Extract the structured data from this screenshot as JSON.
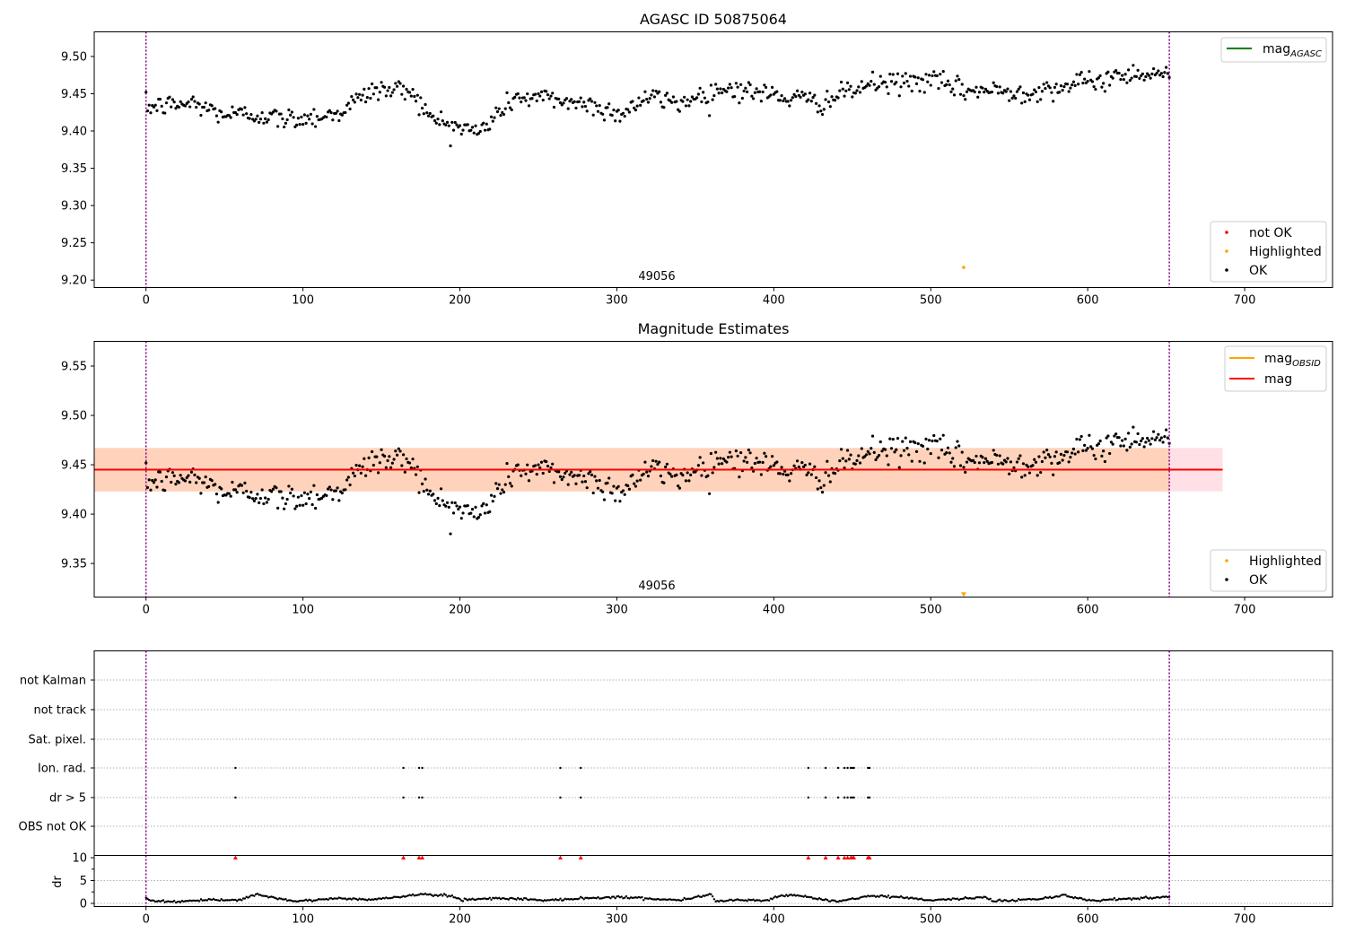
{
  "chart_data": [
    {
      "type": "scatter",
      "title": "AGASC ID 50875064",
      "xlabel": "",
      "ylabel": "",
      "xlim": [
        -33,
        756
      ],
      "ylim": [
        9.19,
        9.533
      ],
      "xticks": [
        0,
        100,
        200,
        300,
        400,
        500,
        600,
        700
      ],
      "yticks": [
        9.2,
        9.25,
        9.3,
        9.35,
        9.4,
        9.45,
        9.5
      ],
      "xtick_labels": [
        "0",
        "100",
        "200",
        "300",
        "400",
        "500",
        "600",
        "700"
      ],
      "ytick_labels": [
        "9.20",
        "9.25",
        "9.30",
        "9.35",
        "9.40",
        "9.45",
        "9.50"
      ],
      "obsid_lines": [
        0,
        652
      ],
      "obsid_label": "49056",
      "obsid_label_x": 326,
      "legend_lines": [
        {
          "label_main": "mag",
          "label_sub": "AGASC",
          "color": "#008000"
        }
      ],
      "legend_markers": [
        {
          "label": "not OK",
          "color": "#ff0000"
        },
        {
          "label": "Highlighted",
          "color": "#ffa500"
        },
        {
          "label": "OK",
          "color": "#000000"
        }
      ],
      "series": [
        {
          "name": "OK",
          "color": "#000000",
          "anchors": [
            [
              0,
              9.432
            ],
            [
              30,
              9.437
            ],
            [
              50,
              9.422
            ],
            [
              75,
              9.422
            ],
            [
              85,
              9.415
            ],
            [
              120,
              9.422
            ],
            [
              145,
              9.455
            ],
            [
              170,
              9.455
            ],
            [
              180,
              9.418
            ],
            [
              200,
              9.405
            ],
            [
              212,
              9.398
            ],
            [
              235,
              9.445
            ],
            [
              260,
              9.443
            ],
            [
              290,
              9.432
            ],
            [
              300,
              9.422
            ],
            [
              320,
              9.445
            ],
            [
              340,
              9.438
            ],
            [
              370,
              9.458
            ],
            [
              400,
              9.448
            ],
            [
              430,
              9.438
            ],
            [
              460,
              9.462
            ],
            [
              500,
              9.468
            ],
            [
              520,
              9.455
            ],
            [
              560,
              9.452
            ],
            [
              600,
              9.465
            ],
            [
              630,
              9.478
            ],
            [
              652,
              9.478
            ]
          ],
          "noise": 0.013
        },
        {
          "name": "Highlighted",
          "color": "#ffa500",
          "points": [
            [
              521,
              9.217
            ]
          ]
        },
        {
          "name": "not OK",
          "color": "#ff0000",
          "points": []
        }
      ]
    },
    {
      "type": "scatter",
      "title": "Magnitude Estimates",
      "xlabel": "",
      "ylabel": "",
      "xlim": [
        -33,
        756
      ],
      "ylim": [
        9.316,
        9.575
      ],
      "xticks": [
        0,
        100,
        200,
        300,
        400,
        500,
        600,
        700
      ],
      "yticks": [
        9.35,
        9.4,
        9.45,
        9.5,
        9.55
      ],
      "xtick_labels": [
        "0",
        "100",
        "200",
        "300",
        "400",
        "500",
        "600",
        "700"
      ],
      "ytick_labels": [
        "9.35",
        "9.40",
        "9.45",
        "9.50",
        "9.55"
      ],
      "obsid_lines": [
        0,
        652
      ],
      "obsid_label": "49056",
      "obsid_label_x": 326,
      "mag_line": 9.445,
      "mag_band": [
        9.423,
        9.467
      ],
      "band_x": [
        -33,
        686
      ],
      "legend_lines": [
        {
          "label_main": "mag",
          "label_sub": "OBSID",
          "color": "#ffa500"
        },
        {
          "label_main": "mag",
          "label_sub": "",
          "color": "#ff0000"
        }
      ],
      "legend_markers": [
        {
          "label": "Highlighted",
          "color": "#ffa500"
        },
        {
          "label": "OK",
          "color": "#000000"
        }
      ],
      "series": [
        {
          "name": "OK",
          "color": "#000000",
          "anchors": [
            [
              0,
              9.432
            ],
            [
              30,
              9.437
            ],
            [
              50,
              9.422
            ],
            [
              75,
              9.422
            ],
            [
              85,
              9.415
            ],
            [
              120,
              9.422
            ],
            [
              145,
              9.455
            ],
            [
              170,
              9.455
            ],
            [
              180,
              9.418
            ],
            [
              200,
              9.405
            ],
            [
              212,
              9.398
            ],
            [
              235,
              9.445
            ],
            [
              260,
              9.443
            ],
            [
              290,
              9.432
            ],
            [
              300,
              9.422
            ],
            [
              320,
              9.445
            ],
            [
              340,
              9.438
            ],
            [
              370,
              9.458
            ],
            [
              400,
              9.448
            ],
            [
              430,
              9.438
            ],
            [
              460,
              9.462
            ],
            [
              500,
              9.468
            ],
            [
              520,
              9.455
            ],
            [
              560,
              9.452
            ],
            [
              600,
              9.465
            ],
            [
              630,
              9.478
            ],
            [
              652,
              9.478
            ]
          ],
          "noise": 0.013
        },
        {
          "name": "Highlighted",
          "color": "#ffa500",
          "points": [
            [
              521,
              9.318
            ]
          ]
        }
      ]
    },
    {
      "type": "scatter",
      "title": "",
      "xlabel": "",
      "ylabel": "dr",
      "xlim": [
        -33,
        756
      ],
      "flag_labels": [
        "not Kalman",
        "not track",
        "Sat. pixel.",
        "Ion. rad.",
        "dr > 5",
        "OBS not OK"
      ],
      "flag_events": {
        "Ion. rad.": [
          57,
          164,
          174,
          176,
          264,
          277,
          422,
          433,
          441,
          445,
          447,
          449,
          450,
          451,
          460,
          461
        ],
        "dr > 5": [
          57,
          164,
          174,
          176,
          264,
          277,
          422,
          433,
          441,
          445,
          447,
          449,
          450,
          451,
          460,
          461
        ]
      },
      "dr_ylim": [
        -0.7,
        10.5
      ],
      "dr_yticks": [
        0,
        5,
        10
      ],
      "dr_ytick_labels": [
        "0",
        "5",
        "10"
      ],
      "dr_markers": [
        57,
        164,
        174,
        176,
        264,
        277,
        422,
        433,
        441,
        445,
        447,
        449,
        450,
        451,
        460,
        461
      ],
      "dr_marker_value": 10,
      "dr_marker_color": "#ff0000",
      "dr_anchors": [
        [
          0,
          1.2
        ],
        [
          5,
          0.5
        ],
        [
          20,
          0.4
        ],
        [
          40,
          0.7
        ],
        [
          60,
          0.8
        ],
        [
          70,
          1.9
        ],
        [
          85,
          1.0
        ],
        [
          95,
          0.4
        ],
        [
          120,
          1.1
        ],
        [
          145,
          0.8
        ],
        [
          175,
          2.0
        ],
        [
          195,
          1.6
        ],
        [
          200,
          0.8
        ],
        [
          220,
          1.1
        ],
        [
          240,
          1.0
        ],
        [
          255,
          0.6
        ],
        [
          270,
          1.0
        ],
        [
          300,
          1.4
        ],
        [
          340,
          0.7
        ],
        [
          360,
          2.0
        ],
        [
          363,
          0.5
        ],
        [
          380,
          0.8
        ],
        [
          395,
          0.6
        ],
        [
          405,
          1.8
        ],
        [
          420,
          1.5
        ],
        [
          440,
          0.3
        ],
        [
          460,
          1.6
        ],
        [
          480,
          1.4
        ],
        [
          500,
          0.7
        ],
        [
          535,
          1.3
        ],
        [
          540,
          0.5
        ],
        [
          570,
          1.0
        ],
        [
          585,
          1.8
        ],
        [
          600,
          0.6
        ],
        [
          620,
          0.9
        ],
        [
          640,
          1.2
        ],
        [
          652,
          1.4
        ]
      ],
      "dr_noise": 0.12,
      "obsid_lines": [
        0,
        652
      ],
      "xticks": [
        0,
        100,
        200,
        300,
        400,
        500,
        600,
        700
      ],
      "xtick_labels": [
        "0",
        "100",
        "200",
        "300",
        "400",
        "500",
        "600",
        "700"
      ]
    }
  ]
}
